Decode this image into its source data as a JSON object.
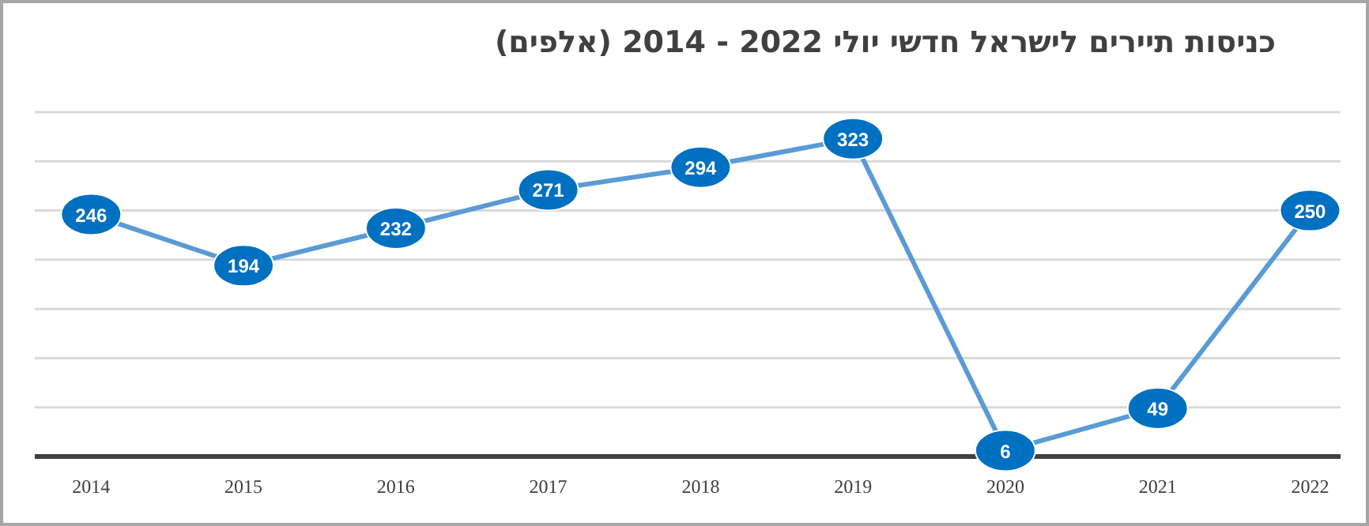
{
  "chart_data": {
    "type": "line",
    "title": "כניסות תיירים לישראל חדשי יולי 2022 - 2014 (אלפים)",
    "categories": [
      "2014",
      "2015",
      "2016",
      "2017",
      "2018",
      "2019",
      "2020",
      "2021",
      "2022"
    ],
    "values": [
      246,
      194,
      232,
      271,
      294,
      323,
      6,
      49,
      250
    ],
    "color": "#5b9bd5",
    "marker": "circle",
    "data_labels": true,
    "grid": "y",
    "tick_labels": "x",
    "ylim": [
      0,
      350
    ],
    "yticks": [
      {
        "value": 0,
        "label": null
      },
      {
        "value": 50,
        "label": null
      },
      {
        "value": 100,
        "label": null
      },
      {
        "value": 150,
        "label": null
      },
      {
        "value": 200,
        "label": null
      },
      {
        "value": 250,
        "label": null
      },
      {
        "value": 300,
        "label": null
      },
      {
        "value": 350,
        "label": null
      }
    ]
  }
}
